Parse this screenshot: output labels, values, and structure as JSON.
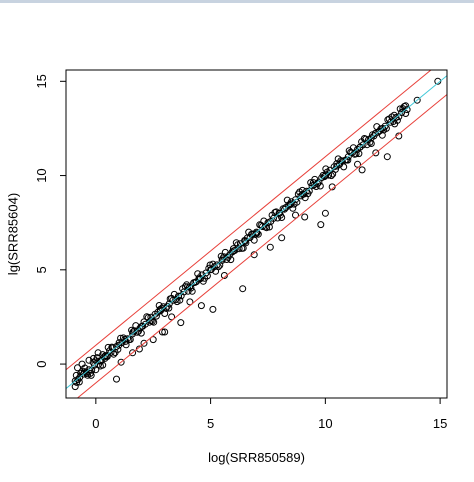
{
  "chart_data": {
    "type": "scatter",
    "title": "",
    "xlabel": "log(SRR850589)",
    "ylabel": "lg(SRR85604)",
    "xlim": [
      -1.3,
      15.3
    ],
    "ylim": [
      -1.8,
      15.6
    ],
    "xticks": [
      "0",
      "5",
      "10",
      "15"
    ],
    "yticks": [
      "0",
      "5",
      "10",
      "15"
    ],
    "grid": false,
    "legend": "none",
    "point_marker": "open-circle",
    "point_color": "#000000",
    "reference_lines": [
      {
        "name": "",
        "slope": 1,
        "intercept": 0,
        "color": "#40c8d8"
      },
      {
        "name": "",
        "slope": 1,
        "intercept": 1,
        "color": "#e8403a"
      },
      {
        "name": "",
        "slope": 1,
        "intercept": -1,
        "color": "#e8403a"
      }
    ],
    "series": [
      {
        "name": "",
        "points_trend": {
          "x_range": [
            -1.0,
            14.9
          ],
          "relation": "y ≈ x"
        },
        "x": [
          -0.9,
          -0.85,
          -0.8,
          -0.7,
          -0.6,
          -0.5,
          -0.4,
          -0.3,
          -0.2,
          -0.1,
          0.0,
          0.1,
          0.2,
          0.3,
          0.5,
          0.7,
          1.0,
          1.3,
          1.6,
          2.0,
          2.4,
          2.8,
          3.2,
          3.6,
          4.0,
          4.5,
          5.0,
          5.5,
          6.0,
          6.5,
          7.0,
          7.5,
          8.0,
          8.5,
          9.0,
          9.5,
          10.0,
          10.5,
          11.0,
          11.5,
          12.0,
          12.5,
          13.0,
          13.5,
          14.0,
          14.9,
          1.9,
          2.5,
          3.0,
          3.7,
          4.6,
          5.1,
          6.4,
          7.6,
          8.7,
          9.8,
          10.0,
          11.6,
          12.7,
          0.4,
          1.1,
          1.6,
          2.1,
          2.9,
          3.3,
          4.1,
          5.6,
          6.9,
          8.1,
          9.1,
          10.3,
          11.4,
          12.2,
          13.2,
          0.9
        ],
        "y": [
          -0.9,
          -0.6,
          -0.2,
          -0.7,
          0.0,
          -0.4,
          -0.5,
          0.2,
          -0.6,
          0.3,
          -0.3,
          0.6,
          -0.1,
          0.5,
          0.4,
          0.9,
          1.0,
          1.2,
          1.6,
          2.0,
          2.3,
          2.9,
          3.2,
          3.6,
          4.1,
          4.5,
          5.0,
          5.5,
          6.0,
          6.5,
          7.0,
          7.5,
          8.0,
          8.5,
          9.0,
          9.5,
          10.0,
          10.5,
          11.0,
          11.5,
          12.0,
          12.5,
          13.2,
          13.7,
          14.0,
          15.0,
          0.8,
          1.3,
          1.7,
          2.2,
          3.1,
          2.9,
          4.0,
          6.2,
          7.9,
          7.4,
          8.0,
          10.3,
          11.0,
          0.3,
          0.1,
          0.6,
          1.1,
          1.7,
          2.5,
          3.3,
          4.7,
          5.8,
          6.7,
          7.8,
          9.4,
          10.6,
          11.2,
          12.1,
          -0.8
        ]
      }
    ]
  }
}
